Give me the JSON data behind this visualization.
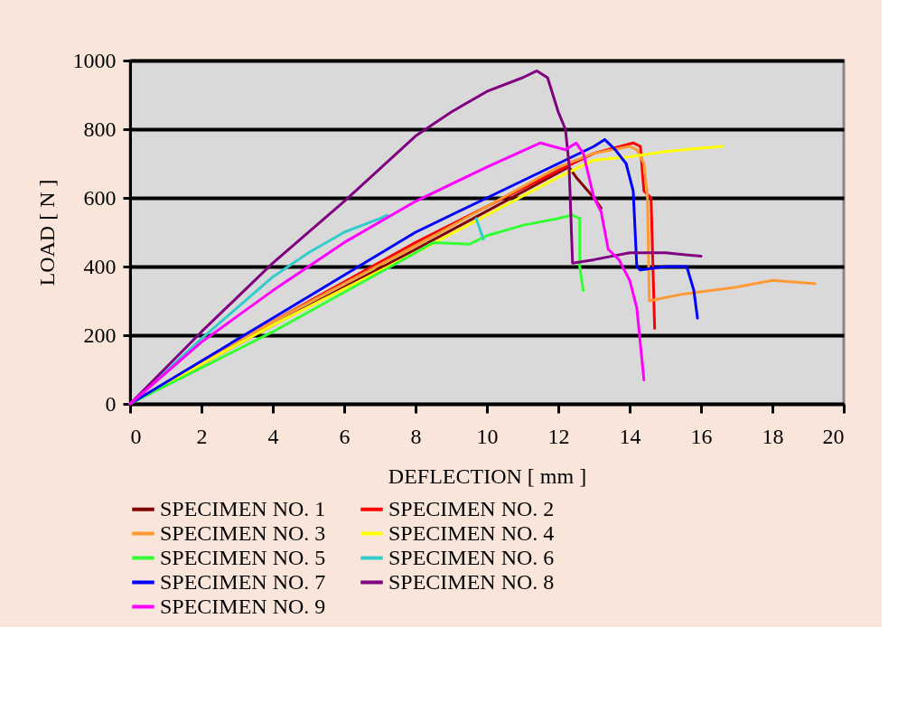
{
  "chart_data": {
    "type": "line",
    "xlabel": "DEFLECTION [ mm ]",
    "ylabel": "LOAD [ N ]",
    "xlim": [
      0,
      20
    ],
    "xticks": [
      0,
      2,
      4,
      6,
      8,
      10,
      12,
      14,
      16,
      18,
      20
    ],
    "ylim": [
      0,
      1000
    ],
    "yticks": [
      0,
      200,
      400,
      600,
      800,
      1000
    ],
    "grid": "y",
    "legend": "bottom",
    "line_style": "solid",
    "marker": "none",
    "series": [
      {
        "name": "SPECIMEN NO. 1",
        "color": "#800000",
        "x": [
          0,
          4,
          8,
          12.3,
          12.5,
          13.0,
          13.2
        ],
        "values": [
          0,
          230,
          450,
          690,
          660,
          600,
          570
        ]
      },
      {
        "name": "SPECIMEN NO. 2",
        "color": "#ff0000",
        "x": [
          0,
          4,
          8,
          12,
          13,
          14.1,
          14.3,
          14.4,
          14.6,
          14.7
        ],
        "values": [
          0,
          240,
          470,
          680,
          730,
          760,
          750,
          620,
          600,
          220
        ]
      },
      {
        "name": "SPECIMEN NO. 3",
        "color": "#ff9933",
        "x": [
          0,
          4,
          8,
          12,
          13,
          14.0,
          14.2,
          14.4,
          14.5,
          14.55,
          15.5,
          17,
          18,
          19.2
        ],
        "values": [
          0,
          240,
          460,
          690,
          730,
          750,
          740,
          700,
          600,
          300,
          320,
          340,
          360,
          350
        ]
      },
      {
        "name": "SPECIMEN NO. 4",
        "color": "#ffff00",
        "x": [
          0,
          4,
          8,
          10,
          12,
          13,
          14,
          15,
          16,
          16.6
        ],
        "values": [
          0,
          230,
          440,
          550,
          660,
          710,
          720,
          735,
          745,
          750
        ]
      },
      {
        "name": "SPECIMEN NO. 5",
        "color": "#33ff33",
        "x": [
          0,
          4,
          8,
          8.5,
          9.5,
          10,
          11,
          12,
          12.4,
          12.6,
          12.6,
          12.7
        ],
        "values": [
          0,
          210,
          440,
          470,
          465,
          490,
          520,
          540,
          550,
          540,
          400,
          330
        ]
      },
      {
        "name": "SPECIMEN NO. 6",
        "color": "#33cccc",
        "x": [
          0,
          2,
          4,
          5,
          6,
          7,
          7.2,
          9.3,
          9.7,
          9.9
        ],
        "values": [
          0,
          190,
          370,
          440,
          500,
          540,
          550,
          null,
          540,
          480
        ]
      },
      {
        "name": "SPECIMEN NO. 7",
        "color": "#0000ff",
        "x": [
          0,
          4,
          8,
          10,
          12,
          13,
          13.3,
          13.6,
          13.9,
          14.1,
          14.2,
          14.3,
          15,
          15.6,
          15.8,
          15.9
        ],
        "values": [
          0,
          250,
          500,
          600,
          700,
          750,
          770,
          740,
          700,
          620,
          400,
          390,
          400,
          400,
          330,
          250
        ]
      },
      {
        "name": "SPECIMEN NO. 8",
        "color": "#800080",
        "x": [
          0,
          2,
          4,
          6,
          8,
          9,
          10,
          11,
          11.4,
          11.7,
          12,
          12.2,
          12.3,
          12.4,
          13,
          14,
          15,
          16
        ],
        "values": [
          0,
          210,
          410,
          590,
          780,
          850,
          910,
          950,
          970,
          950,
          850,
          800,
          700,
          410,
          420,
          440,
          440,
          430
        ]
      },
      {
        "name": "SPECIMEN NO. 9",
        "color": "#ff00ff",
        "x": [
          0,
          2,
          4,
          6,
          8,
          10,
          11.5,
          12.2,
          12.5,
          12.7,
          13,
          13.2,
          13.4,
          13.7,
          14,
          14.2,
          14.4
        ],
        "values": [
          0,
          180,
          330,
          470,
          590,
          690,
          760,
          740,
          760,
          730,
          600,
          560,
          450,
          420,
          360,
          280,
          70
        ]
      }
    ]
  }
}
